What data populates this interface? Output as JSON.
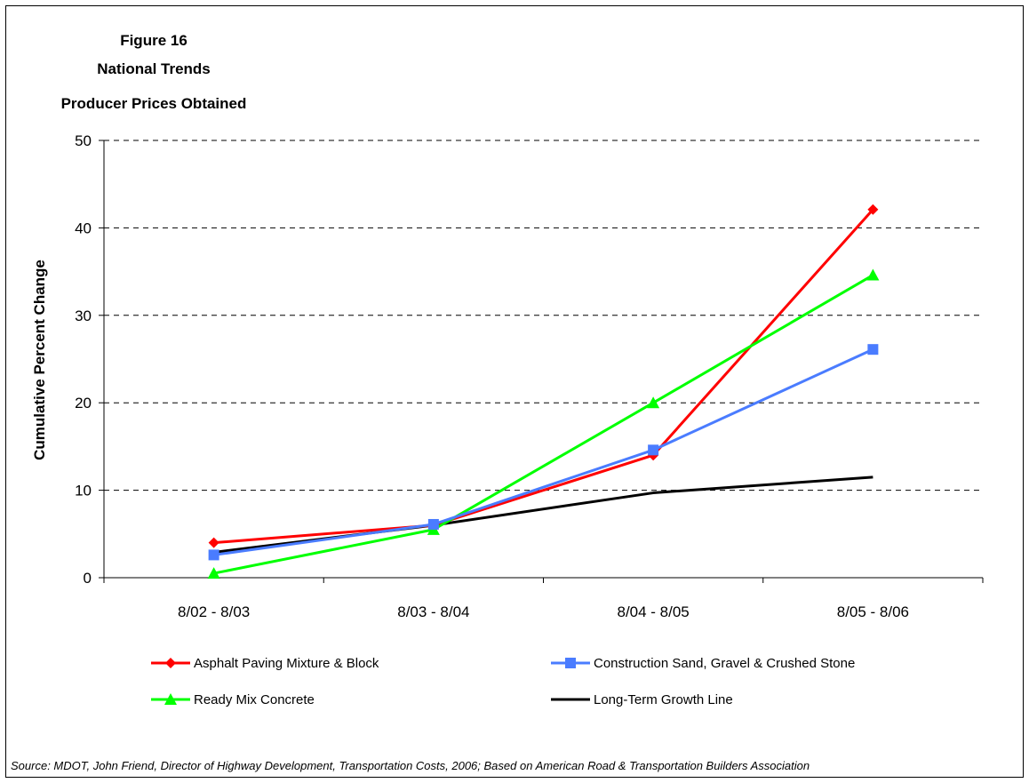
{
  "chart_data": {
    "type": "line",
    "title": [
      "Figure 16",
      "National Trends",
      "Producer Prices Obtained"
    ],
    "xlabel": "",
    "ylabel": "Cumulative Percent Change",
    "categories": [
      "8/02 - 8/03",
      "8/03 - 8/04",
      "8/04 - 8/05",
      "8/05 - 8/06"
    ],
    "ylim": [
      0,
      50
    ],
    "yticks": [
      0,
      10,
      20,
      30,
      40,
      50
    ],
    "grid": "horizontal dashed",
    "legend_position": "bottom",
    "series": [
      {
        "name": "Asphalt Paving Mixture & Block",
        "values": [
          4.0,
          6.0,
          14.0,
          42.1
        ],
        "color": "#ff0000",
        "marker": "diamond"
      },
      {
        "name": "Construction Sand, Gravel & Crushed Stone",
        "values": [
          2.6,
          6.1,
          14.6,
          26.1
        ],
        "color": "#4a7cff",
        "marker": "square"
      },
      {
        "name": "Ready Mix Concrete",
        "values": [
          0.5,
          5.5,
          20.0,
          34.6
        ],
        "color": "#00ff00",
        "marker": "triangle"
      },
      {
        "name": "Long-Term Growth Line",
        "values": [
          2.9,
          6.0,
          9.7,
          11.5
        ],
        "color": "#000000",
        "marker": "none"
      }
    ],
    "source": "Source: MDOT, John Friend, Director of Highway Development, Transportation Costs, 2006; Based on American Road & Transportation Builders Association"
  }
}
